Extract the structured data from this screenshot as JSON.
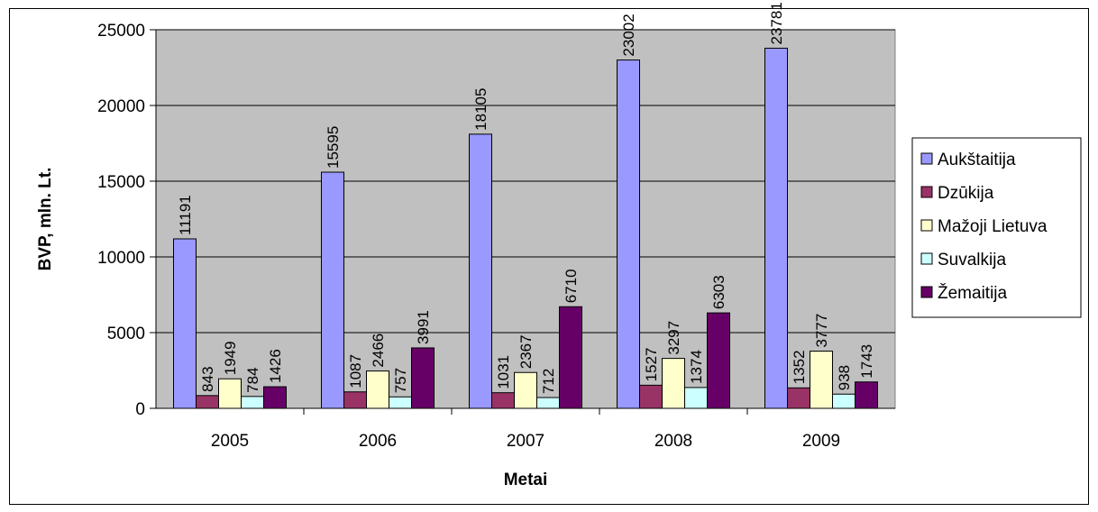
{
  "chart_data": {
    "type": "bar",
    "title": "",
    "xlabel": "Metai",
    "ylabel": "BVP, mln. Lt.",
    "ylim": [
      0,
      25000
    ],
    "yticks": [
      "0",
      "5000",
      "10000",
      "15000",
      "20000",
      "25000"
    ],
    "grid": true,
    "legend_position": "right",
    "categories": [
      "2005",
      "2006",
      "2007",
      "2008",
      "2009"
    ],
    "series": [
      {
        "name": "Aukštaitija",
        "color": "#9999ff",
        "values": [
          11191,
          15595,
          18105,
          23002,
          23781
        ]
      },
      {
        "name": "Dzūkija",
        "color": "#993366",
        "values": [
          843,
          1087,
          1031,
          1527,
          1352
        ]
      },
      {
        "name": "Mažoji Lietuva",
        "color": "#ffffcc",
        "values": [
          1949,
          2466,
          2367,
          3297,
          3777
        ]
      },
      {
        "name": "Suvalkija",
        "color": "#ccffff",
        "values": [
          784,
          757,
          712,
          1374,
          938
        ]
      },
      {
        "name": "Žemaitija",
        "color": "#660066",
        "values": [
          1426,
          3991,
          6710,
          6303,
          1743
        ]
      }
    ]
  },
  "colors": {
    "plot_background": "#c0c0c0",
    "gridline": "#000000"
  }
}
